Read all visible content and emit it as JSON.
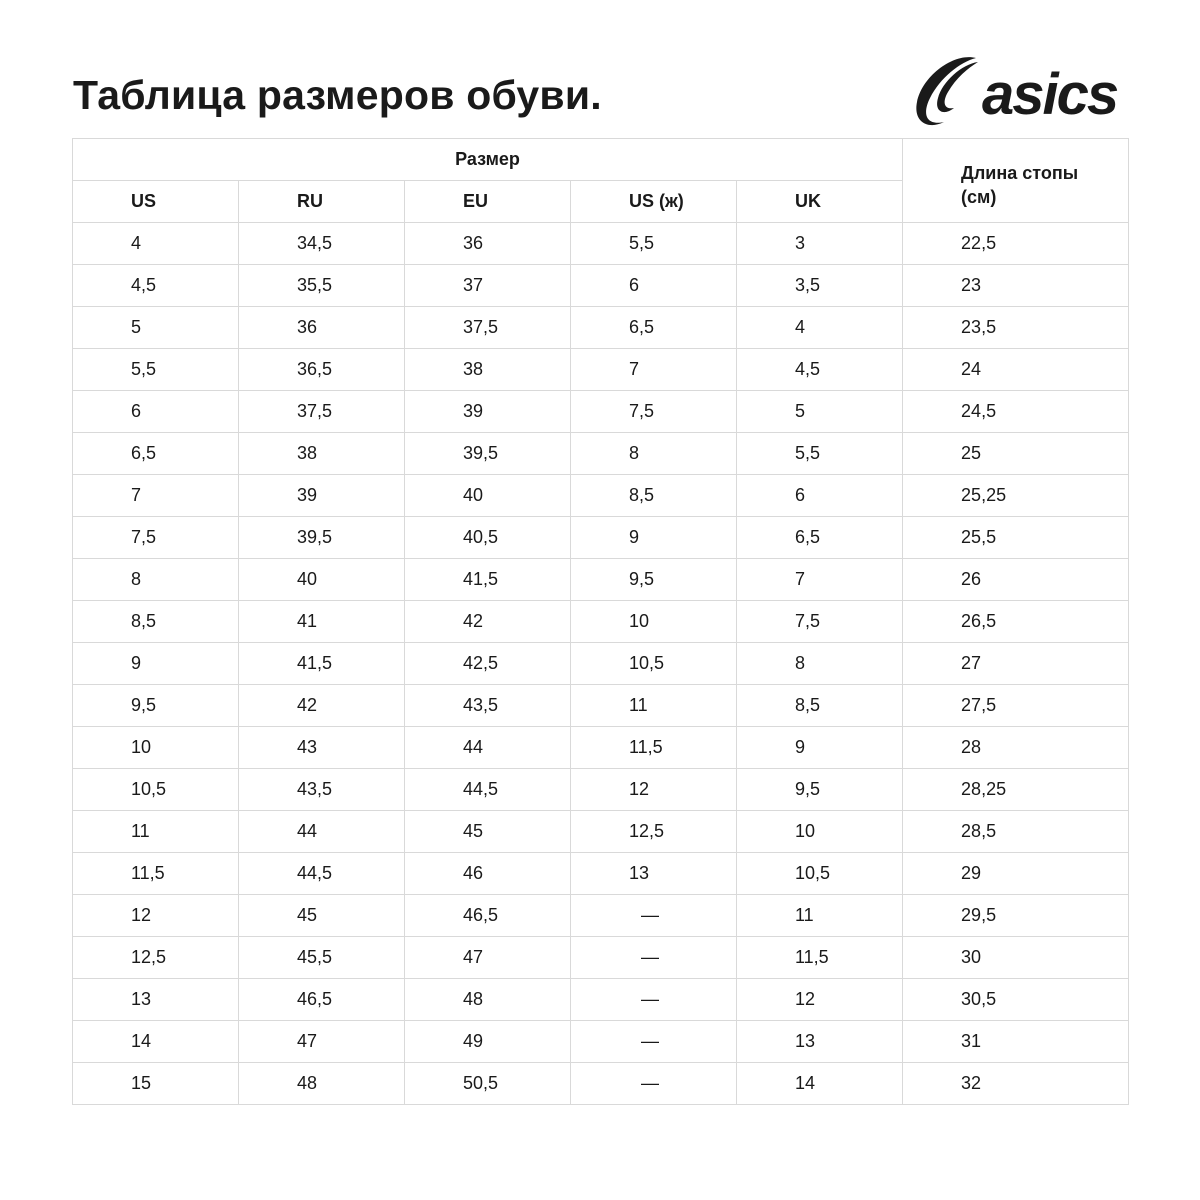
{
  "title": "Таблица размеров обуви.",
  "logo": {
    "text": "asics",
    "icon": "asics-stripe-logo"
  },
  "table": {
    "group_header": "Размер",
    "length_header": "Длина стопы (см)",
    "columns": [
      "US",
      "RU",
      "EU",
      "US (ж)",
      "UK"
    ],
    "rows": [
      [
        "4",
        "34,5",
        "36",
        "5,5",
        "3",
        "22,5"
      ],
      [
        "4,5",
        "35,5",
        "37",
        "6",
        "3,5",
        "23"
      ],
      [
        "5",
        "36",
        "37,5",
        "6,5",
        "4",
        "23,5"
      ],
      [
        "5,5",
        "36,5",
        "38",
        "7",
        "4,5",
        "24"
      ],
      [
        "6",
        "37,5",
        "39",
        "7,5",
        "5",
        "24,5"
      ],
      [
        "6,5",
        "38",
        "39,5",
        "8",
        "5,5",
        "25"
      ],
      [
        "7",
        "39",
        "40",
        "8,5",
        "6",
        "25,25"
      ],
      [
        "7,5",
        "39,5",
        "40,5",
        "9",
        "6,5",
        "25,5"
      ],
      [
        "8",
        "40",
        "41,5",
        "9,5",
        "7",
        "26"
      ],
      [
        "8,5",
        "41",
        "42",
        "10",
        "7,5",
        "26,5"
      ],
      [
        "9",
        "41,5",
        "42,5",
        "10,5",
        "8",
        "27"
      ],
      [
        "9,5",
        "42",
        "43,5",
        "11",
        "8,5",
        "27,5"
      ],
      [
        "10",
        "43",
        "44",
        "11,5",
        "9",
        "28"
      ],
      [
        "10,5",
        "43,5",
        "44,5",
        "12",
        "9,5",
        "28,25"
      ],
      [
        "11",
        "44",
        "45",
        "12,5",
        "10",
        "28,5"
      ],
      [
        "11,5",
        "44,5",
        "46",
        "13",
        "10,5",
        "29"
      ],
      [
        "12",
        "45",
        "46,5",
        "—",
        "11",
        "29,5"
      ],
      [
        "12,5",
        "45,5",
        "47",
        "—",
        "11,5",
        "30"
      ],
      [
        "13",
        "46,5",
        "48",
        "—",
        "12",
        "30,5"
      ],
      [
        "14",
        "47",
        "49",
        "—",
        "13",
        "31"
      ],
      [
        "15",
        "48",
        "50,5",
        "—",
        "14",
        "32"
      ]
    ]
  }
}
